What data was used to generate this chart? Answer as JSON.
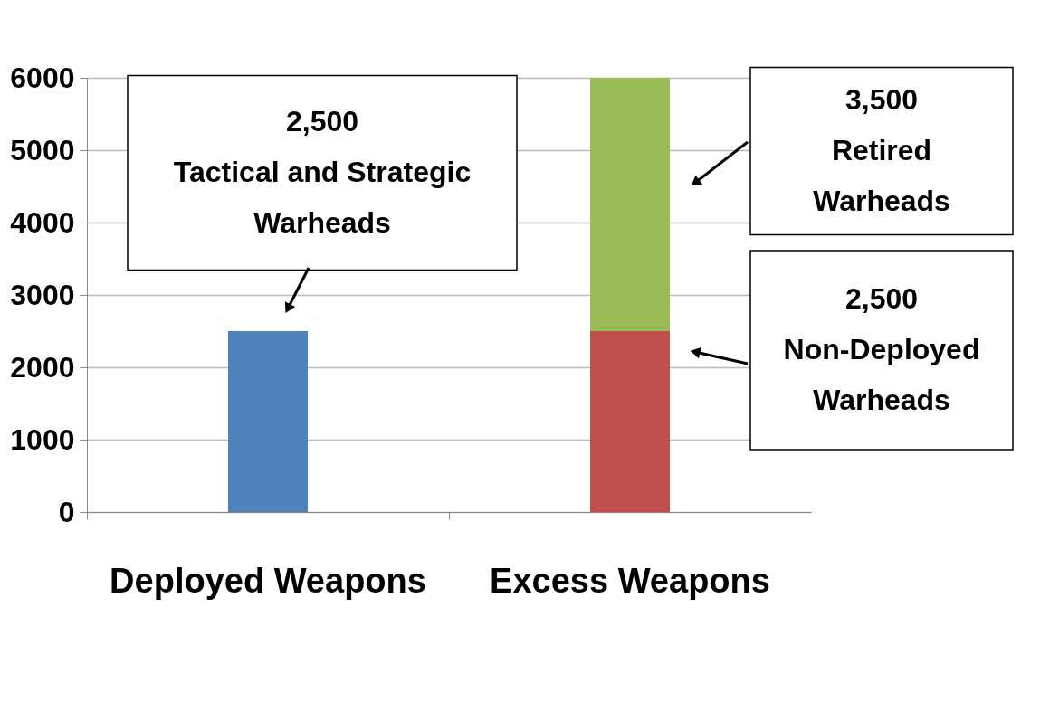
{
  "chart_data": {
    "type": "bar",
    "stacked": true,
    "categories": [
      "Deployed Weapons",
      "Excess Weapons"
    ],
    "series": [
      {
        "color": "#4f81bd",
        "values": [
          2500,
          null
        ]
      },
      {
        "color": "#c0504d",
        "values": [
          null,
          2500
        ]
      },
      {
        "color": "#9bbb59",
        "values": [
          null,
          3500
        ]
      }
    ],
    "ylim": [
      0,
      6000
    ],
    "yticks": [
      0,
      {
        "value": 1000,
        "label": "1000"
      },
      {
        "value": 2000,
        "label": "2000"
      },
      {
        "value": 3000,
        "label": "3000"
      },
      {
        "value": 4000,
        "label": "4000"
      },
      {
        "value": 5000,
        "label": "5000"
      },
      {
        "value": 6000,
        "label": "6000"
      }
    ],
    "grid": "y",
    "legend": false,
    "annotations": [
      "2,500\nTactical and Strategic\nWarheads",
      "3,500\nRetired\nWarheads",
      "2,500\nNon-Deployed\nWarheads"
    ]
  }
}
